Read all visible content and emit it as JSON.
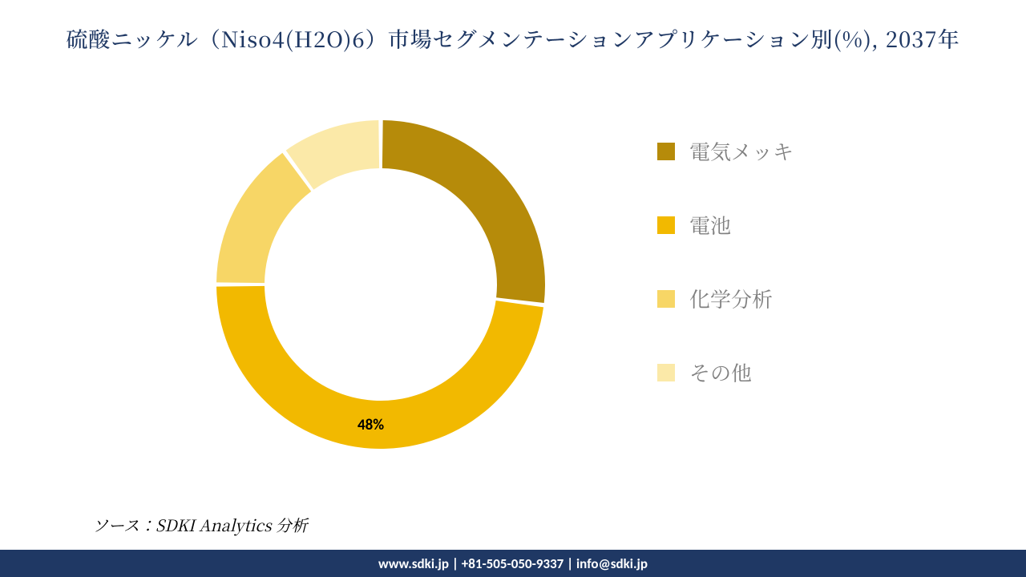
{
  "title": {
    "text": "硫酸ニッケル（Niso4(H2O)6）市場セグメンテーションアプリケーション別(%), 2037年",
    "color": "#1f3864",
    "fontsize": 27
  },
  "chart": {
    "type": "donut",
    "background_color": "#ffffff",
    "outer_radius": 205,
    "inner_radius": 145,
    "gap_deg": 1.5,
    "start_angle_deg": -90,
    "segments": [
      {
        "label": "電気メッキ",
        "value": 27,
        "color": "#b68b0a"
      },
      {
        "label": "電池",
        "value": 48,
        "color": "#f2b900"
      },
      {
        "label": "化学分析",
        "value": 15,
        "color": "#f7d666"
      },
      {
        "label": "その他",
        "value": 10,
        "color": "#fbe9a8"
      }
    ],
    "value_label": {
      "text": "48%",
      "fontsize": 19,
      "fontweight": "700",
      "color": "#000000"
    }
  },
  "legend": {
    "position": "right",
    "label_color": "#808080",
    "label_fontsize": 26,
    "swatch_size": 22,
    "items": [
      {
        "label": "電気メッキ",
        "color": "#b68b0a"
      },
      {
        "label": "電池",
        "color": "#f2b900"
      },
      {
        "label": "化学分析",
        "color": "#f7d666"
      },
      {
        "label": "その他",
        "color": "#fbe9a8"
      }
    ]
  },
  "source": {
    "text": "ソース：SDKI Analytics 分析",
    "fontsize": 20,
    "color": "#000000"
  },
  "footer": {
    "text": "www.sdki.jp | +81-505-050-9337 | info@sdki.jp",
    "background_color": "#1f3864",
    "text_color": "#ffffff",
    "fontsize": 17
  }
}
